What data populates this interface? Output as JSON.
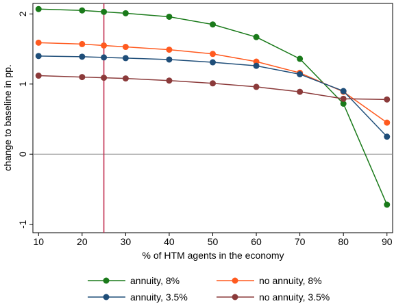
{
  "chart_data": {
    "type": "line",
    "x_label": "% of HTM agents in the economy",
    "y_label": "change to baseline in pp.",
    "x": [
      10,
      20,
      25,
      30,
      40,
      50,
      60,
      70,
      80,
      90
    ],
    "series": [
      {
        "name": "annuity, 8%",
        "color": "#1a7a1a",
        "values": [
          2.07,
          2.05,
          2.03,
          2.01,
          1.96,
          1.85,
          1.67,
          1.36,
          0.72,
          -0.72
        ]
      },
      {
        "name": "no annuity, 8%",
        "color": "#ff5a1f",
        "values": [
          1.59,
          1.57,
          1.55,
          1.53,
          1.49,
          1.43,
          1.32,
          1.16,
          0.89,
          0.45
        ]
      },
      {
        "name": "annuity, 3.5%",
        "color": "#1f4e79",
        "values": [
          1.4,
          1.39,
          1.38,
          1.37,
          1.35,
          1.31,
          1.26,
          1.14,
          0.9,
          0.25
        ]
      },
      {
        "name": "no annuity, 3.5%",
        "color": "#8b3a3a",
        "values": [
          1.12,
          1.1,
          1.09,
          1.08,
          1.05,
          1.01,
          0.96,
          0.89,
          0.79,
          0.78
        ]
      }
    ],
    "xlim": [
      8.7,
      91.3
    ],
    "ylim": [
      -1.12,
      2.15
    ],
    "xticks": [
      10,
      20,
      30,
      40,
      50,
      60,
      70,
      80,
      90
    ],
    "yticks": [
      -1,
      0,
      1,
      2
    ],
    "reference_x": 25,
    "reference_x_color": "#c0284a",
    "reference_y": 0,
    "reference_y_color": "#888888",
    "grid": false,
    "legend": "bottom"
  }
}
